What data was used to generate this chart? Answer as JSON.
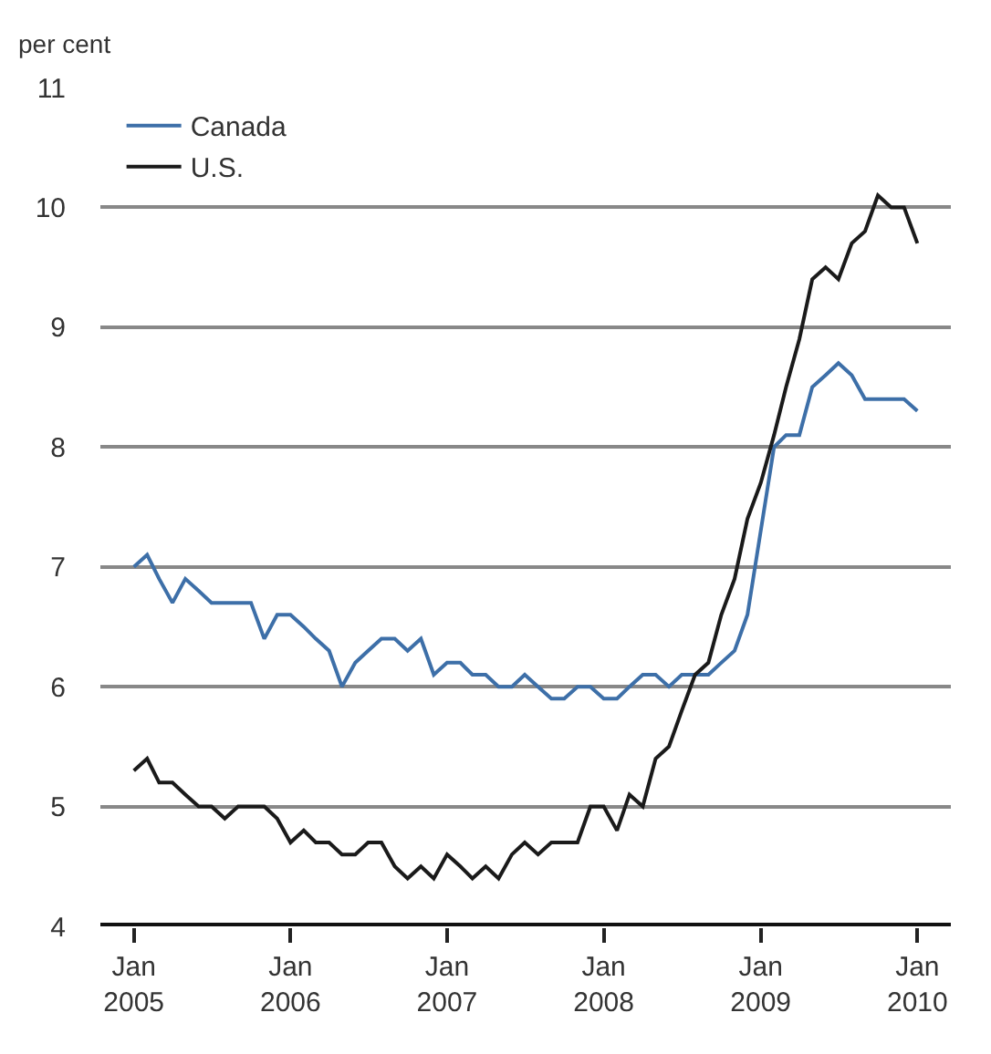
{
  "chart_data": {
    "type": "line",
    "ylabel": "per cent",
    "x": [
      "2005-01",
      "2005-02",
      "2005-03",
      "2005-04",
      "2005-05",
      "2005-06",
      "2005-07",
      "2005-08",
      "2005-09",
      "2005-10",
      "2005-11",
      "2005-12",
      "2006-01",
      "2006-02",
      "2006-03",
      "2006-04",
      "2006-05",
      "2006-06",
      "2006-07",
      "2006-08",
      "2006-09",
      "2006-10",
      "2006-11",
      "2006-12",
      "2007-01",
      "2007-02",
      "2007-03",
      "2007-04",
      "2007-05",
      "2007-06",
      "2007-07",
      "2007-08",
      "2007-09",
      "2007-10",
      "2007-11",
      "2007-12",
      "2008-01",
      "2008-02",
      "2008-03",
      "2008-04",
      "2008-05",
      "2008-06",
      "2008-07",
      "2008-08",
      "2008-09",
      "2008-10",
      "2008-11",
      "2008-12",
      "2009-01",
      "2009-02",
      "2009-03",
      "2009-04",
      "2009-05",
      "2009-06",
      "2009-07",
      "2009-08",
      "2009-09",
      "2009-10",
      "2009-11",
      "2009-12",
      "2010-01"
    ],
    "series": [
      {
        "name": "Canada",
        "color": "#3d6fa8",
        "values": [
          7.0,
          7.1,
          6.9,
          6.7,
          6.9,
          6.8,
          6.7,
          6.7,
          6.7,
          6.7,
          6.4,
          6.6,
          6.6,
          6.5,
          6.4,
          6.3,
          6.0,
          6.2,
          6.3,
          6.4,
          6.4,
          6.3,
          6.4,
          6.1,
          6.2,
          6.2,
          6.1,
          6.1,
          6.0,
          6.0,
          6.1,
          6.0,
          5.9,
          5.9,
          6.0,
          6.0,
          5.9,
          5.9,
          6.0,
          6.1,
          6.1,
          6.0,
          6.1,
          6.1,
          6.1,
          6.2,
          6.3,
          6.6,
          7.3,
          8.0,
          8.1,
          8.1,
          8.5,
          8.6,
          8.7,
          8.6,
          8.4,
          8.4,
          8.4,
          8.4,
          8.3
        ]
      },
      {
        "name": "U.S.",
        "color": "#1a1a1a",
        "values": [
          5.3,
          5.4,
          5.2,
          5.2,
          5.1,
          5.0,
          5.0,
          4.9,
          5.0,
          5.0,
          5.0,
          4.9,
          4.7,
          4.8,
          4.7,
          4.7,
          4.6,
          4.6,
          4.7,
          4.7,
          4.5,
          4.4,
          4.5,
          4.4,
          4.6,
          4.5,
          4.4,
          4.5,
          4.4,
          4.6,
          4.7,
          4.6,
          4.7,
          4.7,
          4.7,
          5.0,
          5.0,
          4.8,
          5.1,
          5.0,
          5.4,
          5.5,
          5.8,
          6.1,
          6.2,
          6.6,
          6.9,
          7.4,
          7.7,
          8.1,
          8.5,
          8.9,
          9.4,
          9.5,
          9.4,
          9.7,
          9.8,
          10.1,
          10.0,
          10.0,
          9.7
        ]
      }
    ],
    "xlim": [
      "2004-10-15",
      "2010-03-20"
    ],
    "xticks": [
      {
        "value": "2005-01",
        "label": "Jan\n2005"
      },
      {
        "value": "2006-01",
        "label": "Jan\n2006"
      },
      {
        "value": "2007-01",
        "label": "Jan\n2007"
      },
      {
        "value": "2008-01",
        "label": "Jan\n2008"
      },
      {
        "value": "2009-01",
        "label": "Jan\n2009"
      },
      {
        "value": "2010-01",
        "label": "Jan\n2010"
      }
    ],
    "ylim": [
      4,
      11
    ],
    "yticks": [
      4,
      5,
      6,
      7,
      8,
      9,
      10,
      11
    ],
    "grid": "y",
    "legend": "top left",
    "marker": "none",
    "line_style": "solid"
  }
}
